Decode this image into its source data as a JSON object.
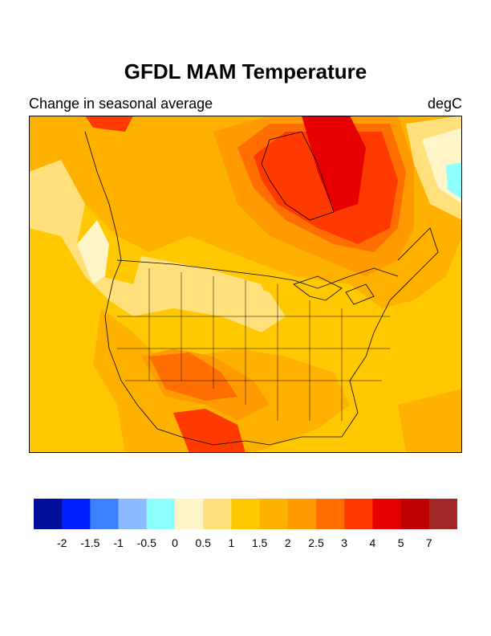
{
  "header": {
    "title": "GFDL MAM Temperature",
    "subtitle_left": "Change in seasonal average",
    "subtitle_right": "degC"
  },
  "legend": {
    "colors": [
      "#00109c",
      "#0020ff",
      "#3c82ff",
      "#8cbaff",
      "#8cffff",
      "#fff5c8",
      "#ffe07a",
      "#ffc800",
      "#ffb100",
      "#ff9a00",
      "#ff6e00",
      "#ff3a00",
      "#e60000",
      "#c00000",
      "#a32828"
    ],
    "labels": [
      "-2",
      "-1.5",
      "-1",
      "-0.5",
      "0",
      "0.5",
      "1",
      "1.5",
      "2",
      "2.5",
      "3",
      "4",
      "5",
      "7"
    ]
  },
  "map": {
    "variable": "temperature change",
    "units": "degC",
    "colors": {
      "band_1_to_1_5": "#ffc800",
      "band_0_5_to_1": "#ffe07a",
      "band_0_to_0_5": "#fff5c8",
      "band_1_5_to_2": "#ffb100",
      "band_2_to_2_5": "#ff9a00",
      "band_2_5_to_3": "#ff6e00",
      "band_3_to_4": "#ff3a00",
      "band_4_to_5": "#e60000",
      "band_neg": "#8cffff",
      "outline": "#000000"
    }
  }
}
